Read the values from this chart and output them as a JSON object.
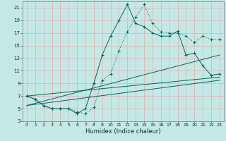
{
  "xlabel": "Humidex (Indice chaleur)",
  "bg_color": "#c5e8e5",
  "grid_color": "#ddb8b8",
  "line_color": "#006858",
  "xlim": [
    -0.5,
    23.5
  ],
  "ylim": [
    3,
    22
  ],
  "yticks": [
    3,
    5,
    7,
    9,
    11,
    13,
    15,
    17,
    19,
    21
  ],
  "xticks": [
    0,
    1,
    2,
    3,
    4,
    5,
    6,
    7,
    8,
    9,
    10,
    11,
    12,
    13,
    14,
    15,
    16,
    17,
    18,
    19,
    20,
    21,
    22,
    23
  ],
  "curve_dotted_x": [
    0,
    1,
    2,
    3,
    4,
    5,
    6,
    7,
    8,
    9,
    10,
    11,
    12,
    13,
    14,
    15,
    16,
    17,
    18,
    19,
    20,
    21,
    22,
    23
  ],
  "curve_dotted_y": [
    7,
    6.5,
    5.5,
    5.0,
    5.0,
    5.0,
    4.5,
    4.2,
    5.2,
    9.5,
    10.5,
    14.2,
    17.2,
    19.5,
    21.5,
    18.5,
    17.2,
    17.0,
    17.0,
    16.5,
    15.5,
    16.5,
    16.0,
    16.0
  ],
  "curve_solid_x": [
    0,
    1,
    2,
    3,
    4,
    5,
    6,
    7,
    8,
    9,
    10,
    11,
    12,
    13,
    14,
    15,
    16,
    17,
    18,
    19,
    20,
    21,
    22,
    23
  ],
  "curve_solid_y": [
    7,
    6.5,
    5.5,
    5.0,
    5.0,
    5.0,
    4.2,
    5.0,
    9.0,
    13.5,
    16.5,
    19.0,
    21.5,
    18.5,
    18.0,
    17.0,
    16.5,
    16.5,
    17.3,
    13.5,
    13.8,
    11.8,
    10.3,
    10.5
  ],
  "line1_x": [
    0,
    23
  ],
  "line1_y": [
    7.0,
    10.0
  ],
  "line2_x": [
    0,
    23
  ],
  "line2_y": [
    5.5,
    13.5
  ],
  "line3_x": [
    0,
    23
  ],
  "line3_y": [
    5.5,
    9.5
  ],
  "xlabel_fontsize": 6,
  "tick_fontsize": 5
}
